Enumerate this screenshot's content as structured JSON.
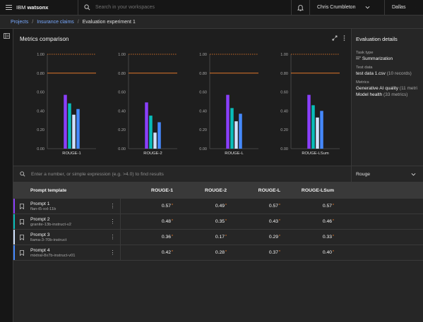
{
  "header": {
    "brand_prefix": "IBM",
    "brand_name": "watsonx",
    "search_placeholder": "Search in your workspaces",
    "user": "Chris Crumbleton",
    "region": "Dallas"
  },
  "breadcrumb": {
    "items": [
      "Projects",
      "Insurance claims"
    ],
    "current": "Evaluation experiment 1"
  },
  "chart_panel": {
    "title": "Metrics comparison"
  },
  "chart_data": {
    "type": "bar",
    "charts": [
      "ROUGE-1",
      "ROUGE-2",
      "ROUGE-L",
      "ROUGE-LSum"
    ],
    "yticks": [
      "0.00",
      "0.20",
      "0.40",
      "0.60",
      "0.80",
      "1.00"
    ],
    "ylim": [
      0,
      1
    ],
    "thresholds": [
      0.8,
      1.0
    ],
    "series": [
      {
        "name": "Prompt 1",
        "color": "#8a3ffc",
        "values": [
          0.57,
          0.49,
          0.57,
          0.57
        ]
      },
      {
        "name": "Prompt 2",
        "color": "#08bdba",
        "values": [
          0.48,
          0.35,
          0.43,
          0.46
        ]
      },
      {
        "name": "Prompt 3",
        "color": "#d0e2ff",
        "values": [
          0.36,
          0.17,
          0.29,
          0.33
        ]
      },
      {
        "name": "Prompt 4",
        "color": "#4589ff",
        "values": [
          0.42,
          0.28,
          0.37,
          0.4
        ]
      }
    ]
  },
  "details": {
    "title": "Evaluation details",
    "task_type_label": "Task type",
    "task_type": "Summarization",
    "test_data_label": "Test data",
    "test_data_file": "test data 1.csv",
    "test_data_records": "(10 records)",
    "metrics_label": "Metrics",
    "metric_1": "Generative AI quality",
    "metric_1_count": "(11 metri",
    "metric_2": "Model health",
    "metric_2_count": "(33 metrics)"
  },
  "filter": {
    "placeholder": "Enter a number, or simple expression (e.g. >4.0) to find results",
    "dropdown_value": "Rouge"
  },
  "table": {
    "header_template": "Prompt template",
    "columns": [
      "ROUGE-1",
      "ROUGE-2",
      "ROUGE-L",
      "ROUGE-LSum"
    ],
    "rows": [
      {
        "name": "Prompt 1",
        "model": "flan-t5-xxl-11b",
        "values": [
          "0.57",
          "0.49",
          "0.57",
          "0.57"
        ],
        "color": "#8a3ffc"
      },
      {
        "name": "Prompt 2",
        "model": "granite-13b-instruct-v2",
        "values": [
          "0.48",
          "0.35",
          "0.43",
          "0.46"
        ],
        "color": "#08bdba"
      },
      {
        "name": "Prompt 3",
        "model": "llama-3-70b-instruct",
        "values": [
          "0.36",
          "0.17",
          "0.29",
          "0.33"
        ],
        "color": "#d0e2ff"
      },
      {
        "name": "Prompt 4",
        "model": "mixtral-8x7b-instruct-v01",
        "values": [
          "0.42",
          "0.28",
          "0.37",
          "0.40"
        ],
        "color": "#4589ff"
      }
    ]
  },
  "colors": {
    "accent": "#78a9ff",
    "threshold": "#ff832b"
  },
  "icons": [
    "hamburger-icon",
    "search-icon",
    "notification-icon",
    "chevron-down-icon",
    "sidebar-toggle-icon",
    "maximize-icon",
    "overflow-menu-icon",
    "bookmark-icon",
    "summarize-icon"
  ]
}
